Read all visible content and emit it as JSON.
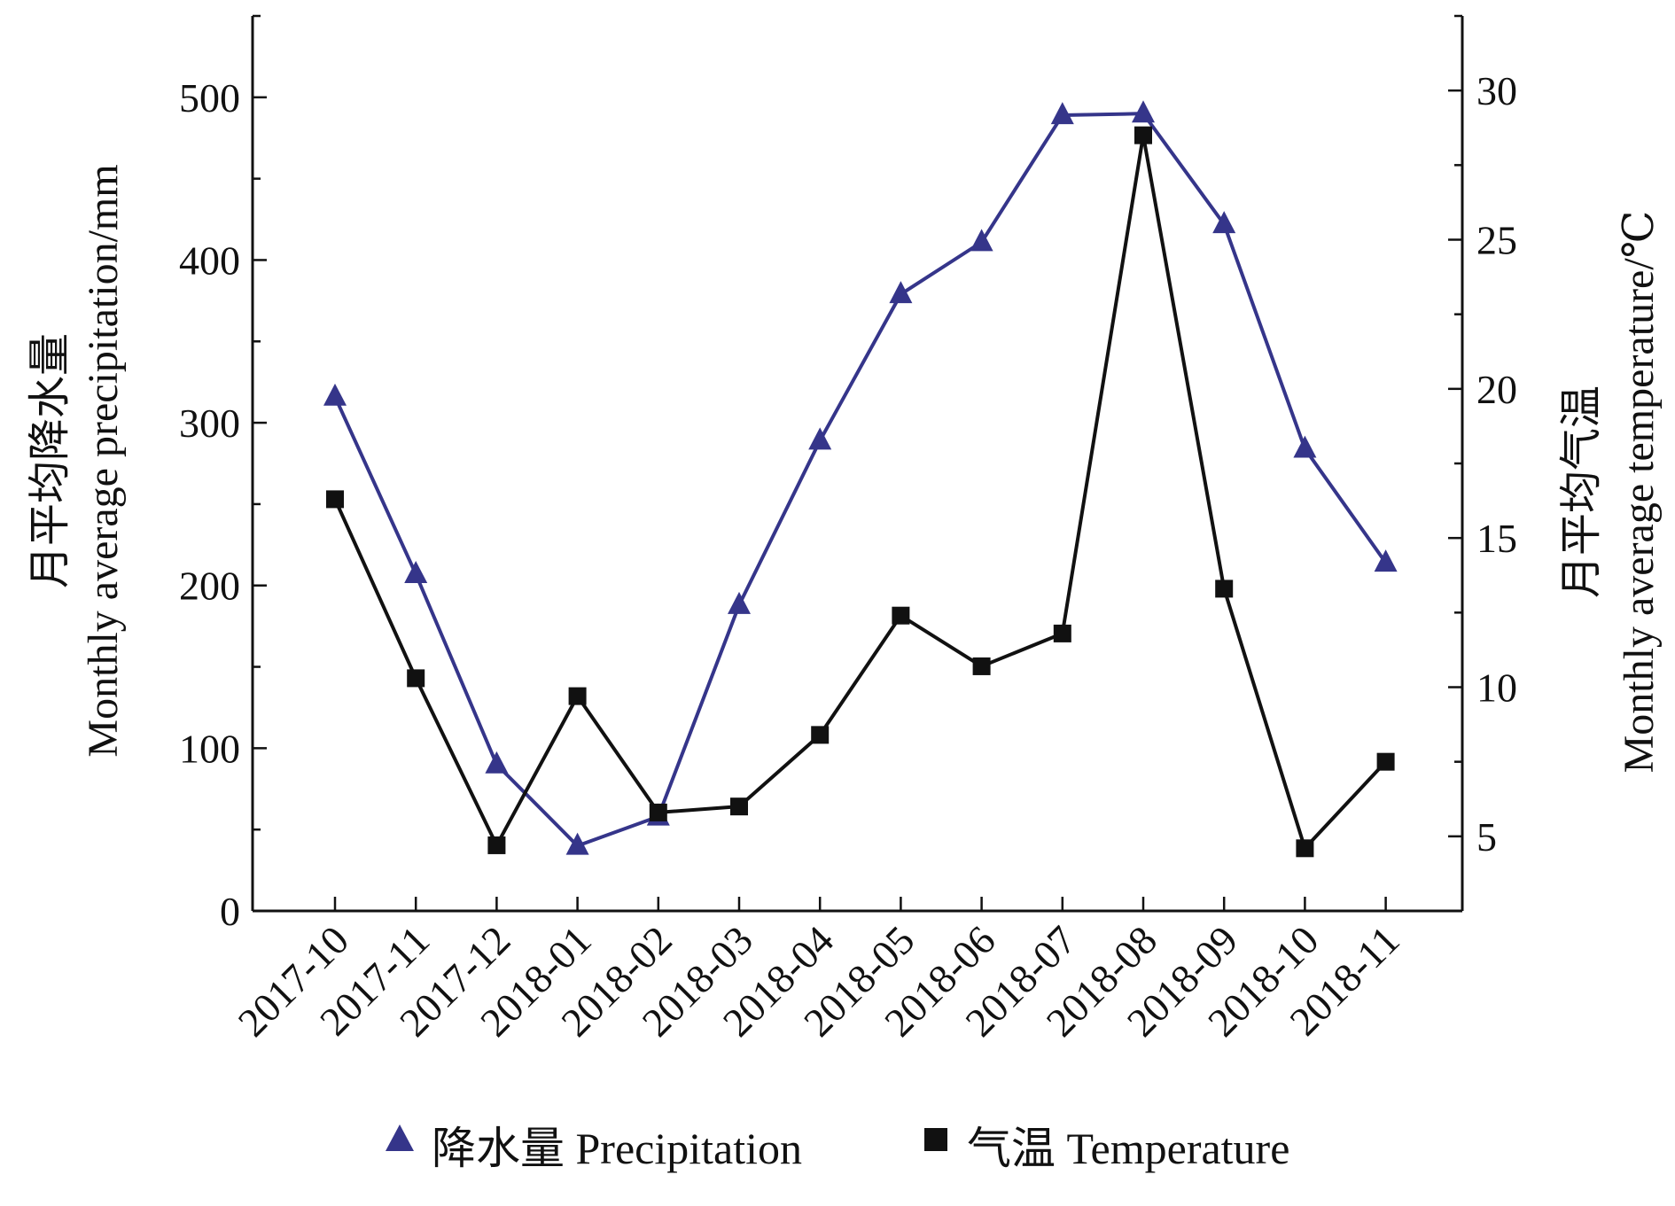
{
  "chart_data": {
    "type": "line",
    "categories": [
      "2017-10",
      "2017-11",
      "2017-12",
      "2018-01",
      "2018-02",
      "2018-03",
      "2018-04",
      "2018-05",
      "2018-06",
      "2018-07",
      "2018-08",
      "2018-09",
      "2018-10",
      "2018-11"
    ],
    "y_left": {
      "label_line1": "月平均降水量",
      "label_line2": "Monthly average precipitation/mm",
      "range": [
        0,
        550
      ],
      "ticks": [
        0,
        100,
        200,
        300,
        400,
        500
      ]
    },
    "y_right": {
      "label_line1": "月平均气温",
      "label_line2": "Monthly average temperature/℃",
      "range": [
        2.5,
        32.5
      ],
      "ticks": [
        5,
        10,
        15,
        20,
        25,
        30
      ]
    },
    "series": [
      {
        "name": "降水量 Precipitation",
        "axis": "left",
        "marker": "triangle",
        "color": "#35358a",
        "values": [
          316,
          207,
          90,
          40,
          58,
          188,
          289,
          379,
          411,
          489,
          490,
          422,
          284,
          214
        ]
      },
      {
        "name": "气温 Temperature",
        "axis": "right",
        "marker": "square",
        "color": "#111111",
        "values": [
          16.3,
          10.3,
          4.7,
          9.7,
          5.8,
          6.0,
          8.4,
          12.4,
          10.7,
          11.8,
          28.5,
          13.3,
          4.6,
          7.5
        ]
      }
    ],
    "grid": false,
    "legend_position": "bottom"
  }
}
